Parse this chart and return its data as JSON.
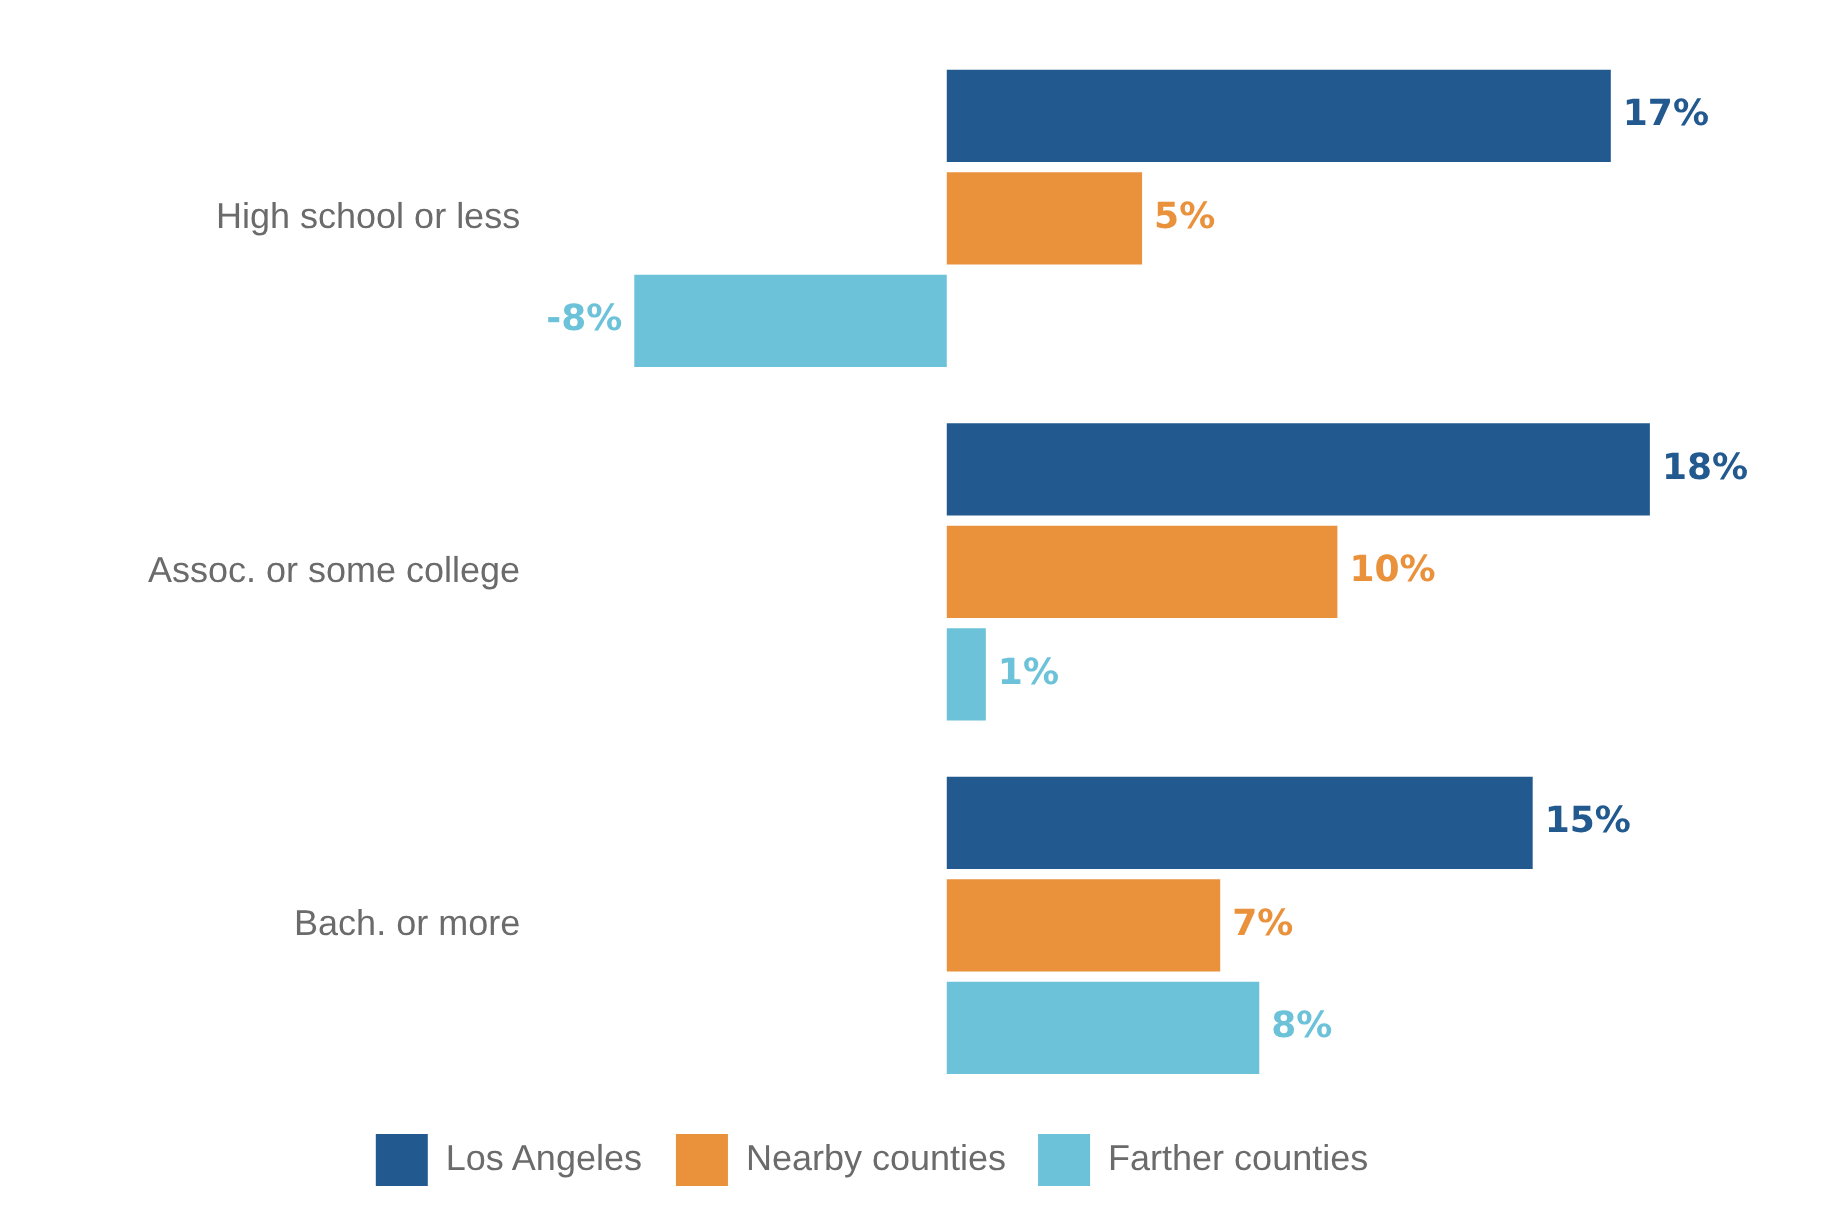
{
  "chart_data": {
    "type": "bar",
    "orientation": "horizontal",
    "categories": [
      "High school or less",
      "Assoc. or some college",
      "Bach. or more"
    ],
    "series": [
      {
        "name": "Los Angeles",
        "color": "#22598f",
        "values": [
          17,
          18,
          15
        ],
        "value_labels": [
          "17%",
          "18%",
          "15%"
        ]
      },
      {
        "name": "Nearby counties",
        "color": "#ea913c",
        "values": [
          5,
          10,
          7
        ],
        "value_labels": [
          "5%",
          "10%",
          "7%"
        ]
      },
      {
        "name": "Farther counties",
        "color": "#6cc2d8",
        "values": [
          -8,
          1,
          8
        ],
        "value_labels": [
          "-8%",
          "1%",
          "8%"
        ]
      }
    ],
    "legend": "bottom"
  }
}
